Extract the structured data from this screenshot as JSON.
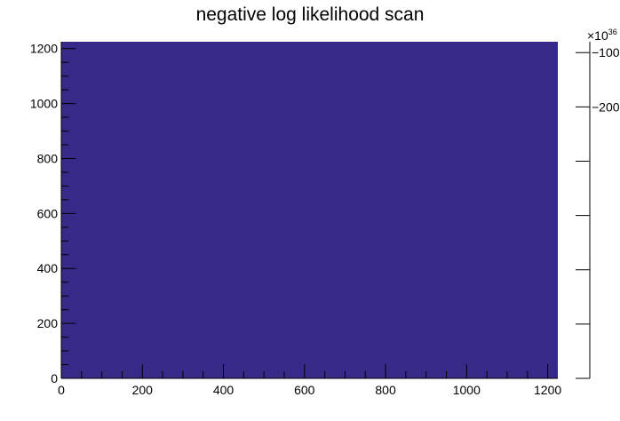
{
  "chart_data": {
    "type": "heatmap",
    "title": "negative log likelihood scan",
    "xlabel": "",
    "ylabel": "",
    "xlim": [
      0,
      1225
    ],
    "ylim": [
      0,
      1225
    ],
    "x_ticks": [
      0,
      200,
      400,
      600,
      800,
      1000,
      1200
    ],
    "y_ticks": [
      0,
      200,
      400,
      600,
      800,
      1000,
      1200
    ],
    "x_tick_labels": [
      "0",
      "200",
      "400",
      "600",
      "800",
      "1000",
      "1200"
    ],
    "y_tick_labels": [
      "0",
      "200",
      "400",
      "600",
      "800",
      "1000",
      "1200"
    ],
    "fill_color": "#352a87",
    "colorbar": {
      "multiplier_label": "×10",
      "multiplier_exponent": "36",
      "tick_labels": [
        "−100",
        "−200"
      ],
      "tick_values": [
        -100,
        -200
      ],
      "range": [
        -700,
        -80
      ]
    },
    "grid": false
  }
}
